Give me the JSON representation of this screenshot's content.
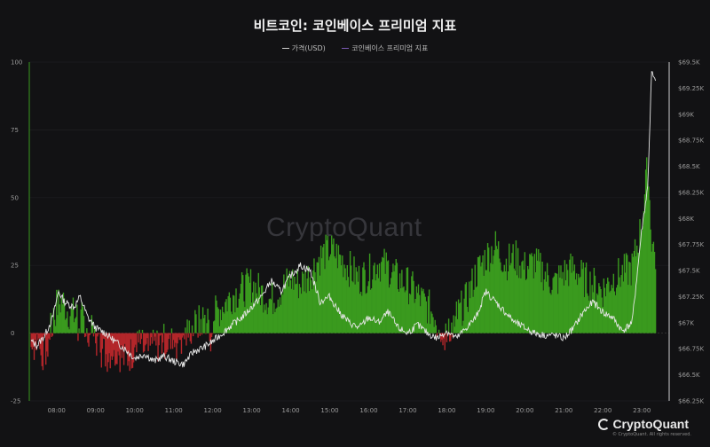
{
  "title": "비트코인: 코인베이스 프리미엄 지표",
  "watermark": "CryptoQuant",
  "brand": "CryptoQuant",
  "copyright": "© CryptoQuant. All rights reserved.",
  "colors": {
    "background": "#121214",
    "positive": "#3a9a1e",
    "negative": "#b3262a",
    "price_line": "#e6e6e6",
    "premium_legend": "#7b5ab5"
  },
  "chart_data": {
    "type": "bar",
    "title": "비트코인: 코인베이스 프리미엄 지표",
    "legend": [
      "가격(USD)",
      "코인베이스 프리미엄 지표"
    ],
    "legend_position": "top-center",
    "grid": true,
    "x_ticks": [
      "08:00",
      "09:00",
      "10:00",
      "11:00",
      "12:00",
      "13:00",
      "14:00",
      "15:00",
      "16:00",
      "17:00",
      "18:00",
      "19:00",
      "20:00",
      "21:00",
      "22:00",
      "23:00"
    ],
    "x_range_hours": [
      7.3,
      23.7
    ],
    "left_axis": {
      "ylim": [
        -25,
        100
      ],
      "ticks": [
        "-25",
        "0",
        "25",
        "50",
        "75",
        "100"
      ]
    },
    "right_axis": {
      "ylim": [
        66250,
        69500
      ],
      "ticks": [
        "$66.25K",
        "$66.5K",
        "$66.75K",
        "$67K",
        "$67.25K",
        "$67.5K",
        "$67.75K",
        "$68K",
        "$68.25K",
        "$68.5K",
        "$68.75K",
        "$69K",
        "$69.25K",
        "$69.5K"
      ]
    },
    "series": [
      {
        "name": "코인베이스 프리미엄 지표",
        "axis": "left",
        "points": [
          [
            7.35,
            -5
          ],
          [
            7.5,
            -3
          ],
          [
            7.6,
            -8
          ],
          [
            7.75,
            -6
          ],
          [
            7.9,
            4
          ],
          [
            8.0,
            10
          ],
          [
            8.15,
            12
          ],
          [
            8.3,
            8
          ],
          [
            8.5,
            6
          ],
          [
            8.75,
            4
          ],
          [
            9.0,
            -3
          ],
          [
            9.15,
            -6
          ],
          [
            9.3,
            -8
          ],
          [
            9.5,
            -5
          ],
          [
            9.75,
            -10
          ],
          [
            10.0,
            -6
          ],
          [
            10.15,
            -4
          ],
          [
            10.3,
            -8
          ],
          [
            10.5,
            -5
          ],
          [
            10.75,
            -3
          ],
          [
            11.0,
            -4
          ],
          [
            11.25,
            -2
          ],
          [
            11.5,
            2
          ],
          [
            11.75,
            5
          ],
          [
            12.0,
            6
          ],
          [
            12.25,
            10
          ],
          [
            12.5,
            14
          ],
          [
            12.75,
            16
          ],
          [
            13.0,
            18
          ],
          [
            13.25,
            15
          ],
          [
            13.5,
            12
          ],
          [
            13.75,
            16
          ],
          [
            14.0,
            20
          ],
          [
            14.25,
            18
          ],
          [
            14.5,
            22
          ],
          [
            14.75,
            28
          ],
          [
            15.0,
            31
          ],
          [
            15.25,
            28
          ],
          [
            15.5,
            24
          ],
          [
            15.75,
            20
          ],
          [
            16.0,
            22
          ],
          [
            16.25,
            26
          ],
          [
            16.5,
            24
          ],
          [
            16.75,
            20
          ],
          [
            17.0,
            18
          ],
          [
            17.25,
            14
          ],
          [
            17.5,
            10
          ],
          [
            17.75,
            6
          ],
          [
            18.0,
            -2
          ],
          [
            18.25,
            6
          ],
          [
            18.5,
            12
          ],
          [
            18.75,
            22
          ],
          [
            19.0,
            28
          ],
          [
            19.25,
            32
          ],
          [
            19.5,
            26
          ],
          [
            19.75,
            28
          ],
          [
            20.0,
            24
          ],
          [
            20.25,
            26
          ],
          [
            20.5,
            22
          ],
          [
            20.75,
            18
          ],
          [
            21.0,
            22
          ],
          [
            21.25,
            24
          ],
          [
            21.5,
            20
          ],
          [
            21.75,
            18
          ],
          [
            22.0,
            16
          ],
          [
            22.25,
            20
          ],
          [
            22.5,
            22
          ],
          [
            22.75,
            24
          ],
          [
            23.0,
            40
          ],
          [
            23.15,
            62
          ],
          [
            23.25,
            35
          ],
          [
            23.35,
            28
          ]
        ]
      },
      {
        "name": "가격(USD)",
        "axis": "right",
        "points": [
          [
            7.35,
            66820
          ],
          [
            7.5,
            66780
          ],
          [
            7.7,
            66880
          ],
          [
            7.9,
            67050
          ],
          [
            8.05,
            67300
          ],
          [
            8.2,
            67200
          ],
          [
            8.45,
            67150
          ],
          [
            8.6,
            67250
          ],
          [
            8.8,
            67050
          ],
          [
            9.0,
            66950
          ],
          [
            9.25,
            66900
          ],
          [
            9.5,
            66820
          ],
          [
            9.75,
            66750
          ],
          [
            10.0,
            66660
          ],
          [
            10.25,
            66700
          ],
          [
            10.5,
            66630
          ],
          [
            10.75,
            66680
          ],
          [
            11.0,
            66630
          ],
          [
            11.25,
            66600
          ],
          [
            11.5,
            66720
          ],
          [
            11.75,
            66760
          ],
          [
            12.0,
            66820
          ],
          [
            12.25,
            66900
          ],
          [
            12.5,
            66980
          ],
          [
            12.75,
            67050
          ],
          [
            13.0,
            67150
          ],
          [
            13.25,
            67250
          ],
          [
            13.5,
            67400
          ],
          [
            13.75,
            67300
          ],
          [
            14.0,
            67450
          ],
          [
            14.25,
            67550
          ],
          [
            14.5,
            67500
          ],
          [
            14.75,
            67200
          ],
          [
            15.0,
            67250
          ],
          [
            15.25,
            67100
          ],
          [
            15.5,
            67000
          ],
          [
            15.75,
            66950
          ],
          [
            16.0,
            67050
          ],
          [
            16.25,
            67000
          ],
          [
            16.5,
            67100
          ],
          [
            16.75,
            66950
          ],
          [
            17.0,
            66900
          ],
          [
            17.25,
            66980
          ],
          [
            17.5,
            66900
          ],
          [
            17.75,
            66850
          ],
          [
            18.0,
            66920
          ],
          [
            18.25,
            66850
          ],
          [
            18.5,
            66950
          ],
          [
            18.75,
            67050
          ],
          [
            19.0,
            67300
          ],
          [
            19.25,
            67200
          ],
          [
            19.5,
            67100
          ],
          [
            19.75,
            67000
          ],
          [
            20.0,
            66950
          ],
          [
            20.25,
            66900
          ],
          [
            20.5,
            66880
          ],
          [
            20.75,
            66880
          ],
          [
            21.0,
            66850
          ],
          [
            21.25,
            66950
          ],
          [
            21.5,
            67100
          ],
          [
            21.75,
            67200
          ],
          [
            22.0,
            67100
          ],
          [
            22.25,
            67050
          ],
          [
            22.5,
            66920
          ],
          [
            22.75,
            67000
          ],
          [
            23.0,
            67900
          ],
          [
            23.15,
            68300
          ],
          [
            23.25,
            69400
          ],
          [
            23.35,
            69300
          ]
        ]
      }
    ]
  }
}
